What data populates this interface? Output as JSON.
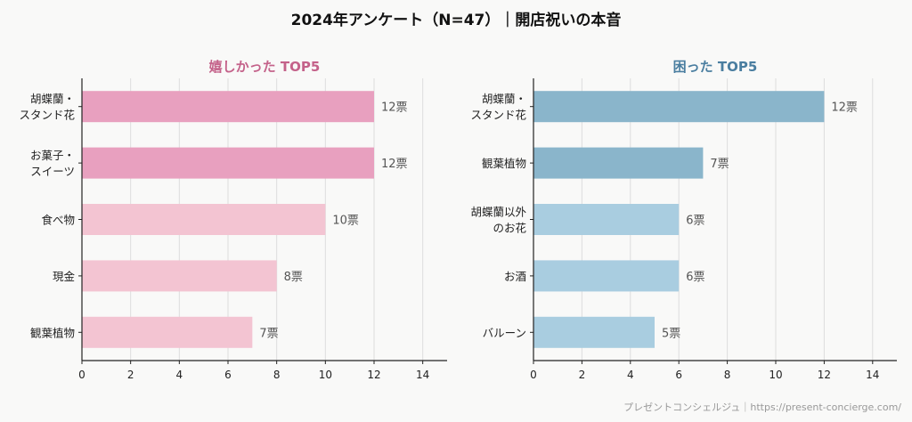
{
  "title": "2024年アンケート（N=47）｜開店祝いの本音",
  "credit": "プレゼントコンシェルジュ｜https://present-concierge.com/",
  "chart_data": [
    {
      "type": "bar",
      "orientation": "horizontal",
      "title": "嬉しかった TOP5",
      "title_color": "#c4628a",
      "categories": [
        "胡蝶蘭・\nスタンド花",
        "お菓子・\nスイーツ",
        "食べ物",
        "現金",
        "観葉植物"
      ],
      "values": [
        12,
        12,
        10,
        8,
        7
      ],
      "data_labels": [
        "12票",
        "12票",
        "10票",
        "8票",
        "7票"
      ],
      "colors": [
        "#e8a0bf",
        "#e8a0bf",
        "#f3c4d2",
        "#f3c4d2",
        "#f3c4d2"
      ],
      "xlim": [
        0,
        15
      ],
      "xticks": [
        "0",
        "2",
        "4",
        "6",
        "8",
        "10",
        "12",
        "14"
      ],
      "grid": "vertical"
    },
    {
      "type": "bar",
      "orientation": "horizontal",
      "title": "困った TOP5",
      "title_color": "#4a7ea0",
      "categories": [
        "胡蝶蘭・\nスタンド花",
        "観葉植物",
        "胡蝶蘭以外\nのお花",
        "お酒",
        "バルーン"
      ],
      "values": [
        12,
        7,
        6,
        6,
        5
      ],
      "data_labels": [
        "12票",
        "7票",
        "6票",
        "6票",
        "5票"
      ],
      "colors": [
        "#8ab5cb",
        "#8ab5cb",
        "#a9cde0",
        "#a9cde0",
        "#a9cde0"
      ],
      "xlim": [
        0,
        15
      ],
      "xticks": [
        "0",
        "2",
        "4",
        "6",
        "8",
        "10",
        "12",
        "14"
      ],
      "grid": "vertical"
    }
  ]
}
